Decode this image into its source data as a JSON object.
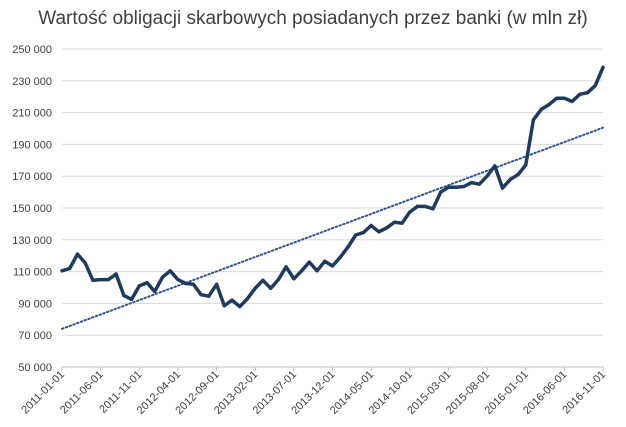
{
  "chart_data": {
    "type": "line",
    "title": "Wartość obligacji skarbowych posiadanych przez banki (w mln zł)",
    "xlabel": "",
    "ylabel": "",
    "ylim": [
      50000,
      250000
    ],
    "y_ticks": [
      50000,
      70000,
      90000,
      110000,
      130000,
      150000,
      170000,
      190000,
      210000,
      230000,
      250000
    ],
    "y_tick_labels": [
      "50 000",
      "70 000",
      "90 000",
      "110 000",
      "130 000",
      "150 000",
      "170 000",
      "190 000",
      "210 000",
      "230 000",
      "250 000"
    ],
    "x_tick_labels": [
      "2011-01-01",
      "2011-06-01",
      "2011-11-01",
      "2012-04-01",
      "2012-09-01",
      "2013-02-01",
      "2013-07-01",
      "2013-12-01",
      "2014-05-01",
      "2014-10-01",
      "2015-03-01",
      "2015-08-01",
      "2016-01-01",
      "2016-06-01",
      "2016-11-01"
    ],
    "grid": true,
    "line_color": "#1f3a5f",
    "trend_color": "#2f5597",
    "x": [
      "2011-01-01",
      "2011-02-01",
      "2011-03-01",
      "2011-04-01",
      "2011-05-01",
      "2011-06-01",
      "2011-07-01",
      "2011-08-01",
      "2011-09-01",
      "2011-10-01",
      "2011-11-01",
      "2011-12-01",
      "2012-01-01",
      "2012-02-01",
      "2012-03-01",
      "2012-04-01",
      "2012-05-01",
      "2012-06-01",
      "2012-07-01",
      "2012-08-01",
      "2012-09-01",
      "2012-10-01",
      "2012-11-01",
      "2012-12-01",
      "2013-01-01",
      "2013-02-01",
      "2013-03-01",
      "2013-04-01",
      "2013-05-01",
      "2013-06-01",
      "2013-07-01",
      "2013-08-01",
      "2013-09-01",
      "2013-10-01",
      "2013-11-01",
      "2013-12-01",
      "2014-01-01",
      "2014-02-01",
      "2014-03-01",
      "2014-04-01",
      "2014-05-01",
      "2014-06-01",
      "2014-07-01",
      "2014-08-01",
      "2014-09-01",
      "2014-10-01",
      "2014-11-01",
      "2014-12-01",
      "2015-01-01",
      "2015-02-01",
      "2015-03-01",
      "2015-04-01",
      "2015-05-01",
      "2015-06-01",
      "2015-07-01",
      "2015-08-01",
      "2015-09-01",
      "2015-10-01",
      "2015-11-01",
      "2015-12-01",
      "2016-01-01",
      "2016-02-01",
      "2016-03-01",
      "2016-04-01",
      "2016-05-01",
      "2016-06-01",
      "2016-07-01",
      "2016-08-01",
      "2016-09-01",
      "2016-10-01",
      "2016-11-01"
    ],
    "series": [
      {
        "values": [
          110500,
          112000,
          121000,
          115500,
          104500,
          105000,
          105000,
          108500,
          95000,
          92500,
          101000,
          103000,
          97500,
          106500,
          110500,
          105000,
          102500,
          102000,
          95500,
          94500,
          102000,
          88500,
          92000,
          88000,
          93000,
          99500,
          104500,
          99500,
          105000,
          113000,
          105500,
          110500,
          116000,
          110500,
          116500,
          113500,
          119000,
          125500,
          133000,
          134500,
          139000,
          135000,
          137500,
          141000,
          140500,
          147500,
          151000,
          151000,
          149500,
          160000,
          163000,
          163000,
          163500,
          166000,
          165000,
          170000,
          176500,
          162500,
          168000,
          171000,
          177000,
          205500,
          212000,
          215000,
          219000,
          219000,
          217000,
          221500,
          222500,
          227000,
          238500
        ]
      }
    ],
    "trendline": {
      "type": "linear",
      "start": 74000,
      "end": 200500
    }
  }
}
